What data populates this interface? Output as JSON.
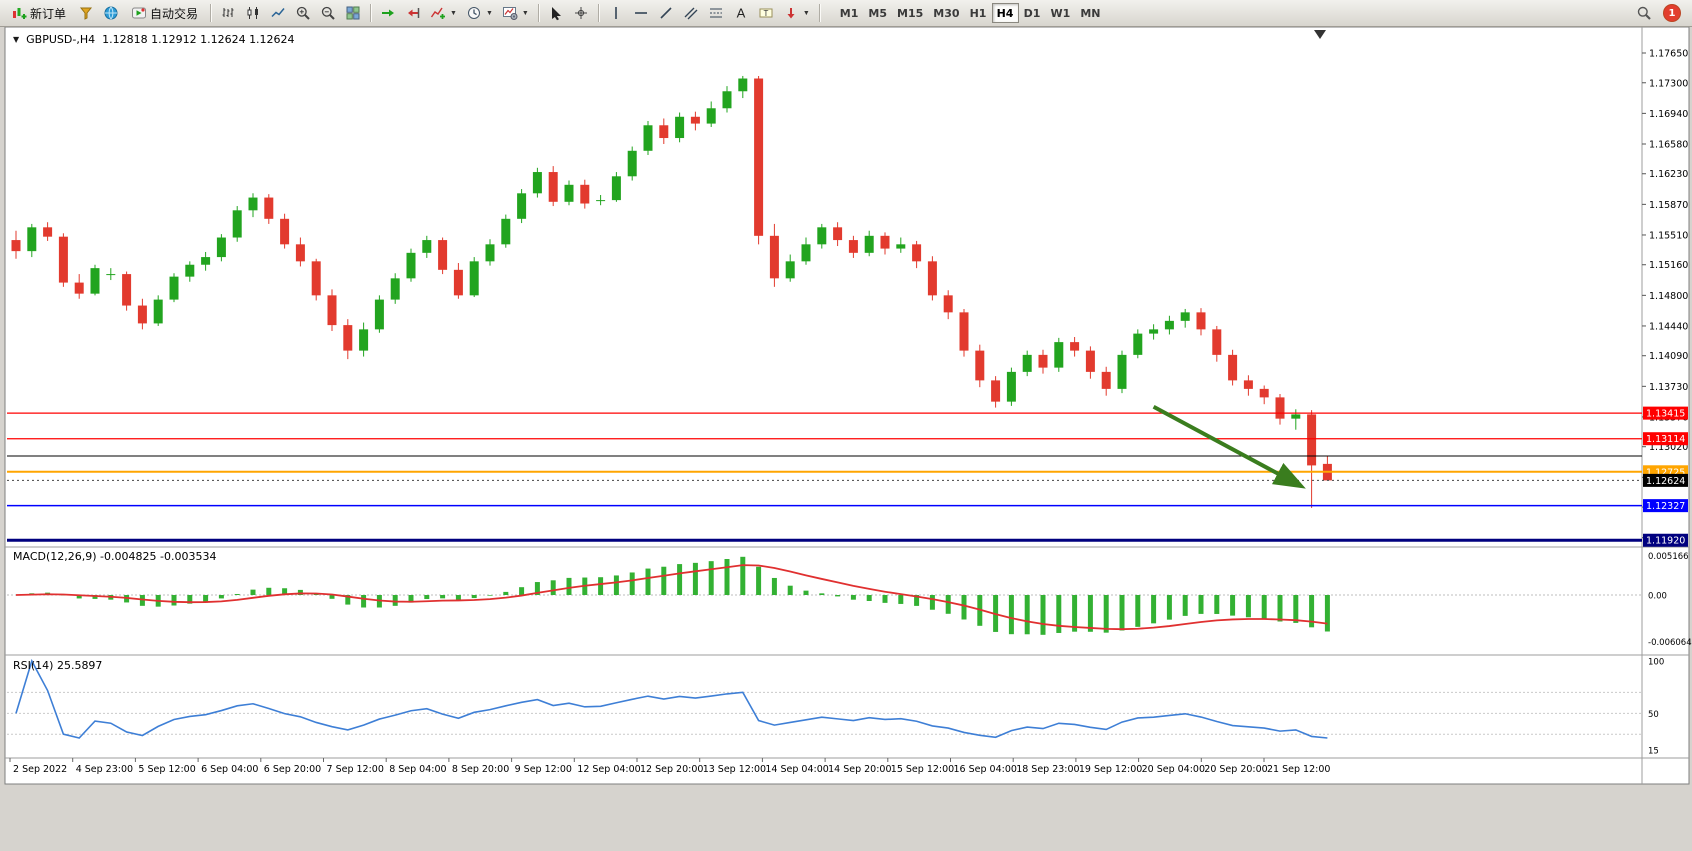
{
  "toolbar": {
    "new_order_label": "新订单",
    "autotrading_label": "自动交易",
    "timeframe_buttons": [
      "M1",
      "M5",
      "M15",
      "M30",
      "H1",
      "H4",
      "D1",
      "W1",
      "MN"
    ],
    "active_timeframe": "H4",
    "notification_count": "1",
    "icon_names": [
      "new-order-icon",
      "metaeditor-icon",
      "community-icon",
      "autotrading-icon",
      "bar-chart-icon",
      "candlestick-chart-icon",
      "line-chart-icon",
      "zoom-in-icon",
      "zoom-out-icon",
      "tile-windows-icon",
      "auto-scroll-icon",
      "chart-shift-icon",
      "indicators-icon",
      "periods-icon",
      "templates-icon",
      "cursor-icon",
      "crosshair-icon",
      "vertical-line-icon",
      "horizontal-line-icon",
      "trendline-icon",
      "channel-icon",
      "fibonacci-icon",
      "text-icon",
      "text-label-icon",
      "arrows-icon",
      "search-icon"
    ]
  },
  "chart": {
    "symbol_period": "GBPUSD-,H4",
    "ohlc_text": "1.12818 1.12912 1.12624 1.12624",
    "macd_label": "MACD(12,26,9) -0.004825 -0.003534",
    "rsi_label": "RSI(14) 25.5897",
    "menu_triangle": "▼"
  },
  "chart_data": {
    "type": "candlestick",
    "symbol": "GBPUSD-",
    "timeframe": "H4",
    "current_ohlc": {
      "open": 1.12818,
      "high": 1.12912,
      "low": 1.12624,
      "close": 1.12624
    },
    "up_color": "#22A41F",
    "down_color": "#E23A2E",
    "ylim": [
      1.1186,
      1.1795
    ],
    "candles": [
      [
        1.1545,
        1.1556,
        1.1523,
        1.1532
      ],
      [
        1.1532,
        1.1564,
        1.1525,
        1.156
      ],
      [
        1.156,
        1.1566,
        1.1544,
        1.1549
      ],
      [
        1.1549,
        1.1553,
        1.149,
        1.1495
      ],
      [
        1.1495,
        1.1505,
        1.1476,
        1.1482
      ],
      [
        1.1482,
        1.1516,
        1.148,
        1.1512
      ],
      [
        1.1505,
        1.1512,
        1.1498,
        1.1505
      ],
      [
        1.1505,
        1.1508,
        1.1462,
        1.1468
      ],
      [
        1.1468,
        1.1476,
        1.144,
        1.1447
      ],
      [
        1.1447,
        1.148,
        1.1444,
        1.1475
      ],
      [
        1.1475,
        1.1506,
        1.1472,
        1.1502
      ],
      [
        1.1502,
        1.152,
        1.1496,
        1.1516
      ],
      [
        1.1516,
        1.1531,
        1.1509,
        1.1525
      ],
      [
        1.1525,
        1.1552,
        1.152,
        1.1548
      ],
      [
        1.1548,
        1.1585,
        1.1543,
        1.158
      ],
      [
        1.158,
        1.16,
        1.1572,
        1.1595
      ],
      [
        1.1595,
        1.1599,
        1.1564,
        1.157
      ],
      [
        1.157,
        1.1576,
        1.1535,
        1.154
      ],
      [
        1.154,
        1.1548,
        1.1514,
        1.152
      ],
      [
        1.152,
        1.1523,
        1.1474,
        1.148
      ],
      [
        1.148,
        1.1487,
        1.1438,
        1.1445
      ],
      [
        1.1445,
        1.1452,
        1.1405,
        1.1415
      ],
      [
        1.1415,
        1.1448,
        1.1408,
        1.144
      ],
      [
        1.144,
        1.148,
        1.1436,
        1.1475
      ],
      [
        1.1475,
        1.1506,
        1.147,
        1.15
      ],
      [
        1.15,
        1.1535,
        1.1496,
        1.153
      ],
      [
        1.153,
        1.155,
        1.1524,
        1.1545
      ],
      [
        1.1545,
        1.1548,
        1.1505,
        1.151
      ],
      [
        1.151,
        1.1518,
        1.1476,
        1.148
      ],
      [
        1.148,
        1.1525,
        1.1478,
        1.152
      ],
      [
        1.152,
        1.1546,
        1.1515,
        1.154
      ],
      [
        1.154,
        1.1575,
        1.1536,
        1.157
      ],
      [
        1.157,
        1.1605,
        1.1565,
        1.16
      ],
      [
        1.16,
        1.163,
        1.1595,
        1.1625
      ],
      [
        1.1625,
        1.1632,
        1.1585,
        1.159
      ],
      [
        1.159,
        1.1615,
        1.1586,
        1.161
      ],
      [
        1.161,
        1.1616,
        1.1582,
        1.1588
      ],
      [
        1.1592,
        1.1598,
        1.1586,
        1.1592
      ],
      [
        1.1592,
        1.1625,
        1.159,
        1.162
      ],
      [
        1.162,
        1.1655,
        1.1615,
        1.165
      ],
      [
        1.165,
        1.1685,
        1.1645,
        1.168
      ],
      [
        1.168,
        1.1688,
        1.1658,
        1.1665
      ],
      [
        1.1665,
        1.1695,
        1.166,
        1.169
      ],
      [
        1.169,
        1.1696,
        1.1674,
        1.1682
      ],
      [
        1.1682,
        1.1708,
        1.1678,
        1.17
      ],
      [
        1.17,
        1.1726,
        1.1695,
        1.172
      ],
      [
        1.172,
        1.1738,
        1.1712,
        1.1735
      ],
      [
        1.1735,
        1.1738,
        1.154,
        1.155
      ],
      [
        1.155,
        1.1564,
        1.149,
        1.15
      ],
      [
        1.15,
        1.1528,
        1.1496,
        1.152
      ],
      [
        1.152,
        1.1548,
        1.1516,
        1.154
      ],
      [
        1.154,
        1.1564,
        1.1535,
        1.156
      ],
      [
        1.156,
        1.1566,
        1.1538,
        1.1545
      ],
      [
        1.1545,
        1.155,
        1.1524,
        1.153
      ],
      [
        1.153,
        1.1556,
        1.1526,
        1.155
      ],
      [
        1.155,
        1.1554,
        1.1528,
        1.1535
      ],
      [
        1.1535,
        1.1548,
        1.153,
        1.154
      ],
      [
        1.154,
        1.1544,
        1.1512,
        1.152
      ],
      [
        1.152,
        1.1526,
        1.1474,
        1.148
      ],
      [
        1.148,
        1.1486,
        1.1452,
        1.146
      ],
      [
        1.146,
        1.1464,
        1.1408,
        1.1415
      ],
      [
        1.1415,
        1.1422,
        1.1372,
        1.138
      ],
      [
        1.138,
        1.1385,
        1.1348,
        1.1355
      ],
      [
        1.1355,
        1.1395,
        1.135,
        1.139
      ],
      [
        1.139,
        1.1415,
        1.1385,
        1.141
      ],
      [
        1.141,
        1.1416,
        1.1388,
        1.1395
      ],
      [
        1.1395,
        1.143,
        1.139,
        1.1425
      ],
      [
        1.1425,
        1.1431,
        1.1408,
        1.1415
      ],
      [
        1.1415,
        1.142,
        1.1382,
        1.139
      ],
      [
        1.139,
        1.1396,
        1.1362,
        1.137
      ],
      [
        1.137,
        1.1415,
        1.1365,
        1.141
      ],
      [
        1.141,
        1.144,
        1.1406,
        1.1435
      ],
      [
        1.1435,
        1.1446,
        1.1428,
        1.144
      ],
      [
        1.144,
        1.1456,
        1.1434,
        1.145
      ],
      [
        1.145,
        1.1464,
        1.1442,
        1.146
      ],
      [
        1.146,
        1.1465,
        1.1433,
        1.144
      ],
      [
        1.144,
        1.1444,
        1.1402,
        1.141
      ],
      [
        1.141,
        1.1416,
        1.1374,
        1.138
      ],
      [
        1.138,
        1.1386,
        1.1362,
        1.137
      ],
      [
        1.137,
        1.1374,
        1.1352,
        1.136
      ],
      [
        1.136,
        1.1364,
        1.1328,
        1.1335
      ],
      [
        1.1335,
        1.1346,
        1.1322,
        1.134
      ],
      [
        1.134,
        1.1345,
        1.123,
        1.128
      ],
      [
        1.12818,
        1.12912,
        1.12624,
        1.12624
      ]
    ],
    "price_axis_labels": [
      "1.17650",
      "1.17300",
      "1.16940",
      "1.16580",
      "1.16230",
      "1.15870",
      "1.15510",
      "1.15160",
      "1.14800",
      "1.14440",
      "1.14090",
      "1.13730",
      "1.13370",
      "1.13020",
      "1.12660",
      "1.12310",
      "1.11950"
    ],
    "time_axis_labels": [
      "2 Sep 2022",
      "4 Sep 23:00",
      "5 Sep 12:00",
      "6 Sep 04:00",
      "6 Sep 20:00",
      "7 Sep 12:00",
      "8 Sep 04:00",
      "8 Sep 20:00",
      "9 Sep 12:00",
      "12 Sep 04:00",
      "12 Sep 20:00",
      "13 Sep 12:00",
      "14 Sep 04:00",
      "14 Sep 20:00",
      "15 Sep 12:00",
      "16 Sep 04:00",
      "18 Sep 23:00",
      "19 Sep 12:00",
      "20 Sep 04:00",
      "20 Sep 20:00",
      "21 Sep 12:00"
    ],
    "horizontal_lines": [
      {
        "price": 1.13415,
        "label": "1.13415",
        "color": "#FF0000",
        "width": 1.3
      },
      {
        "price": 1.13114,
        "label": "1.13114",
        "color": "#FF0000",
        "width": 1.3
      },
      {
        "price": 1.1291,
        "label": null,
        "color": "#000000",
        "width": 1
      },
      {
        "price": 1.12725,
        "label": "1.12725",
        "color": "#FFA500",
        "width": 2
      },
      {
        "price": 1.12327,
        "label": "1.12327",
        "color": "#0000FF",
        "width": 1.5
      },
      {
        "price": 1.1192,
        "label": "1.11920",
        "color": "#00007F",
        "width": 3
      }
    ],
    "current_price": {
      "value": 1.12624,
      "label": "1.12624",
      "color": "#000000"
    },
    "indicators": [
      {
        "name": "MACD",
        "params": "(12,26,9)",
        "values": [
          -0.004825,
          -0.003534
        ],
        "axis_labels": [
          "0.005166",
          "0.00",
          "-0.006064"
        ],
        "histogram_color": "#33B133",
        "signal_color": "#E03030"
      },
      {
        "name": "RSI",
        "params": "(14)",
        "value": 25.5897,
        "axis_labels": [
          "100",
          "50",
          "15"
        ],
        "levels": [
          70,
          50,
          30
        ],
        "line_color": "#3E7FD6"
      }
    ],
    "annotation_arrow": {
      "from_index": 72,
      "from_price": 1.1349,
      "to_index": 81.3,
      "to_price": 1.1256,
      "color": "#3A7D1E"
    }
  }
}
